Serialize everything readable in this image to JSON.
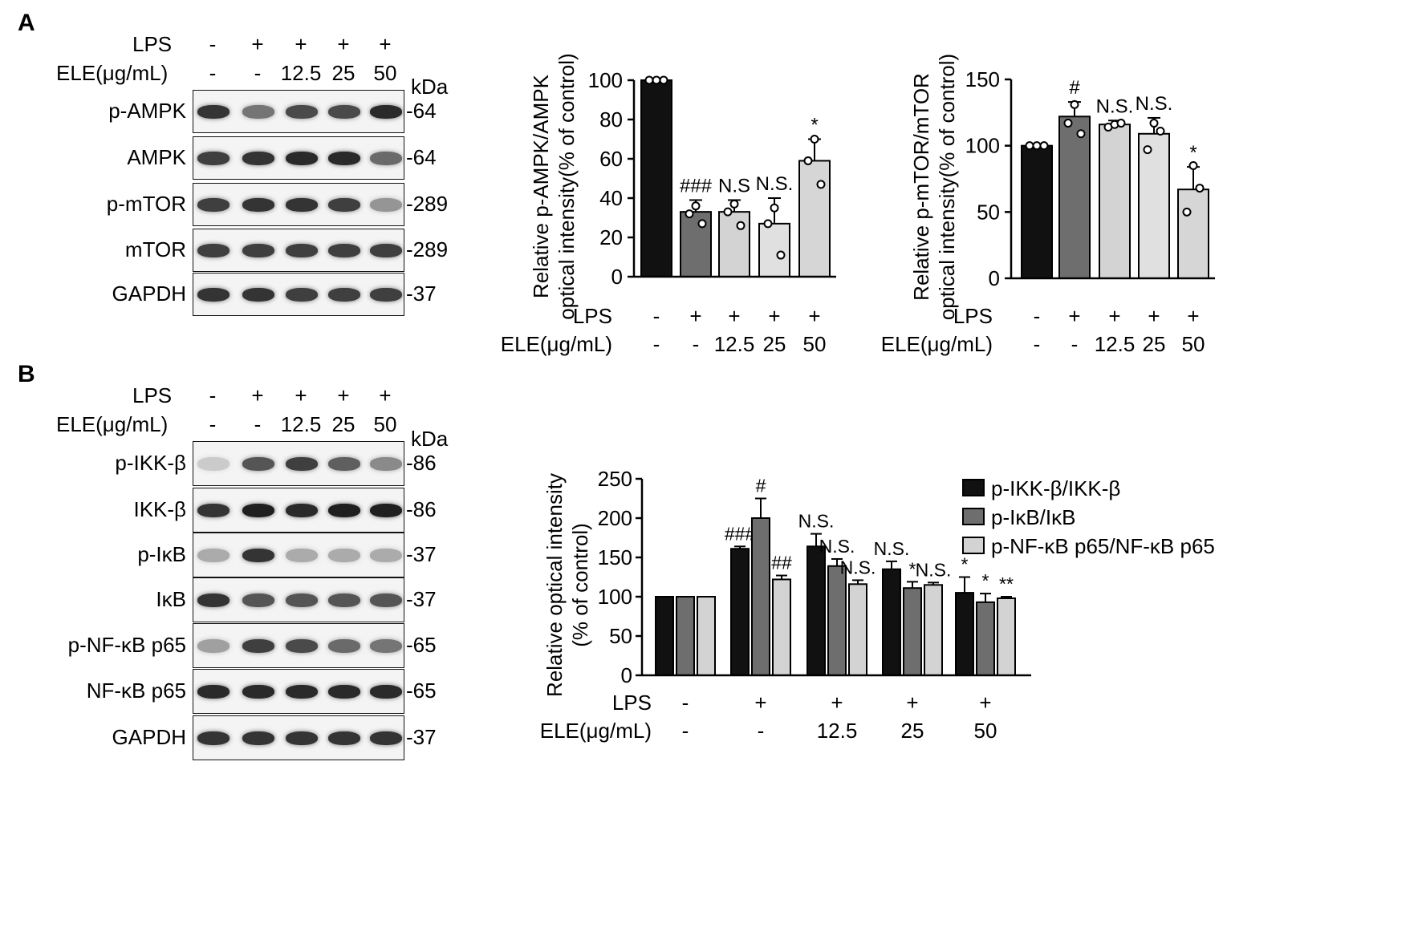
{
  "panels": {
    "a": "A",
    "b": "B"
  },
  "units": {
    "kda": "kDa"
  },
  "conditions": {
    "lps_label": "LPS",
    "ele_label": "ELE(μg/mL)",
    "lps": [
      "-",
      "+",
      "+",
      "+",
      "+"
    ],
    "ele": [
      "-",
      "-",
      "12.5",
      "25",
      "50"
    ]
  },
  "blots_a": [
    {
      "label": "p-AMPK",
      "kda": "64",
      "intensity": [
        0.85,
        0.55,
        0.75,
        0.75,
        0.9
      ]
    },
    {
      "label": "AMPK",
      "kda": "64",
      "intensity": [
        0.8,
        0.85,
        0.9,
        0.9,
        0.6
      ]
    },
    {
      "label": "p-mTOR",
      "kda": "289",
      "intensity": [
        0.8,
        0.85,
        0.85,
        0.8,
        0.4
      ]
    },
    {
      "label": "mTOR",
      "kda": "289",
      "intensity": [
        0.8,
        0.8,
        0.8,
        0.8,
        0.8
      ]
    },
    {
      "label": "GAPDH",
      "kda": "37",
      "intensity": [
        0.85,
        0.85,
        0.8,
        0.8,
        0.8
      ]
    }
  ],
  "blots_b": [
    {
      "label": "p-IKK-β",
      "kda": "86",
      "intensity": [
        0.15,
        0.7,
        0.8,
        0.65,
        0.45
      ]
    },
    {
      "label": "IKK-β",
      "kda": "86",
      "intensity": [
        0.85,
        0.95,
        0.9,
        0.95,
        0.95
      ]
    },
    {
      "label": "p-IκB",
      "kda": "37",
      "intensity": [
        0.3,
        0.85,
        0.3,
        0.3,
        0.3
      ]
    },
    {
      "label": "IκB",
      "kda": "37",
      "intensity": [
        0.85,
        0.7,
        0.7,
        0.7,
        0.7
      ]
    },
    {
      "label": "p-NF-κB p65",
      "kda": "65",
      "intensity": [
        0.35,
        0.8,
        0.75,
        0.6,
        0.55
      ]
    },
    {
      "label": "NF-κB p65",
      "kda": "65",
      "intensity": [
        0.9,
        0.9,
        0.9,
        0.9,
        0.9
      ]
    },
    {
      "label": "GAPDH",
      "kda": "37",
      "intensity": [
        0.85,
        0.85,
        0.85,
        0.85,
        0.85
      ]
    }
  ],
  "chart_data": [
    {
      "type": "bar",
      "id": "ampk",
      "ylabel_lines": [
        "Relative p-AMPK/AMPK",
        "optical intensity(% of control)"
      ],
      "ylim": [
        0,
        100
      ],
      "yticks": [
        0,
        20,
        40,
        60,
        80,
        100
      ],
      "categories": [
        "1",
        "2",
        "3",
        "4",
        "5"
      ],
      "values": [
        100,
        33,
        33,
        27,
        59
      ],
      "errors": [
        0,
        6,
        6,
        13,
        11
      ],
      "points": [
        [
          100,
          100,
          100
        ],
        [
          32,
          36,
          27
        ],
        [
          33,
          37,
          26
        ],
        [
          27,
          35,
          11
        ],
        [
          59,
          70,
          47
        ]
      ],
      "annotations": [
        "",
        "###",
        "N.S",
        "N.S.",
        "*"
      ],
      "colors": [
        "#111111",
        "#6e6e6e",
        "#d3d3d3",
        "#e0e0e0",
        "#d6d6d6"
      ]
    },
    {
      "type": "bar",
      "id": "mtor",
      "ylabel_lines": [
        "Relative p-mTOR/mTOR",
        "optical intensity(% of control)"
      ],
      "ylim": [
        0,
        150
      ],
      "yticks": [
        0,
        50,
        100,
        150
      ],
      "categories": [
        "1",
        "2",
        "3",
        "4",
        "5"
      ],
      "values": [
        100,
        122,
        116,
        109,
        67
      ],
      "errors": [
        0,
        11,
        3,
        12,
        17
      ],
      "points": [
        [
          100,
          100,
          100
        ],
        [
          117,
          131,
          109
        ],
        [
          114,
          116,
          117
        ],
        [
          97,
          117,
          111
        ],
        [
          50,
          85,
          68
        ]
      ],
      "annotations": [
        "",
        "#",
        "N.S.",
        "N.S.",
        "*"
      ],
      "colors": [
        "#111111",
        "#6e6e6e",
        "#d3d3d3",
        "#e0e0e0",
        "#d6d6d6"
      ]
    },
    {
      "type": "bar",
      "id": "nfkb",
      "ylabel_lines": [
        "Relative optical intensity",
        "(% of control)"
      ],
      "ylim": [
        0,
        250
      ],
      "yticks": [
        0,
        50,
        100,
        150,
        200,
        250
      ],
      "categories": [
        "1",
        "2",
        "3",
        "4",
        "5"
      ],
      "series": [
        {
          "name": "p-IKK-β/IKK-β",
          "color": "#111111",
          "values": [
            100,
            161,
            164,
            135,
            105
          ],
          "errors": [
            0,
            3,
            16,
            10,
            20
          ],
          "annotations": [
            "",
            "###",
            "N.S.",
            "N.S.",
            "*"
          ]
        },
        {
          "name": "p-IκB/IκB",
          "color": "#6e6e6e",
          "values": [
            100,
            200,
            139,
            111,
            93
          ],
          "errors": [
            0,
            25,
            9,
            8,
            11
          ],
          "annotations": [
            "",
            "#",
            "N.S.",
            "*",
            "*"
          ]
        },
        {
          "name": "p-NF-κB p65/NF-κB p65",
          "color": "#d3d3d3",
          "values": [
            100,
            122,
            116,
            115,
            98
          ],
          "errors": [
            0,
            5,
            5,
            3,
            2
          ],
          "annotations": [
            "",
            "##",
            "N.S.",
            "N.S.",
            "**"
          ]
        }
      ],
      "legend": "top-right"
    }
  ]
}
